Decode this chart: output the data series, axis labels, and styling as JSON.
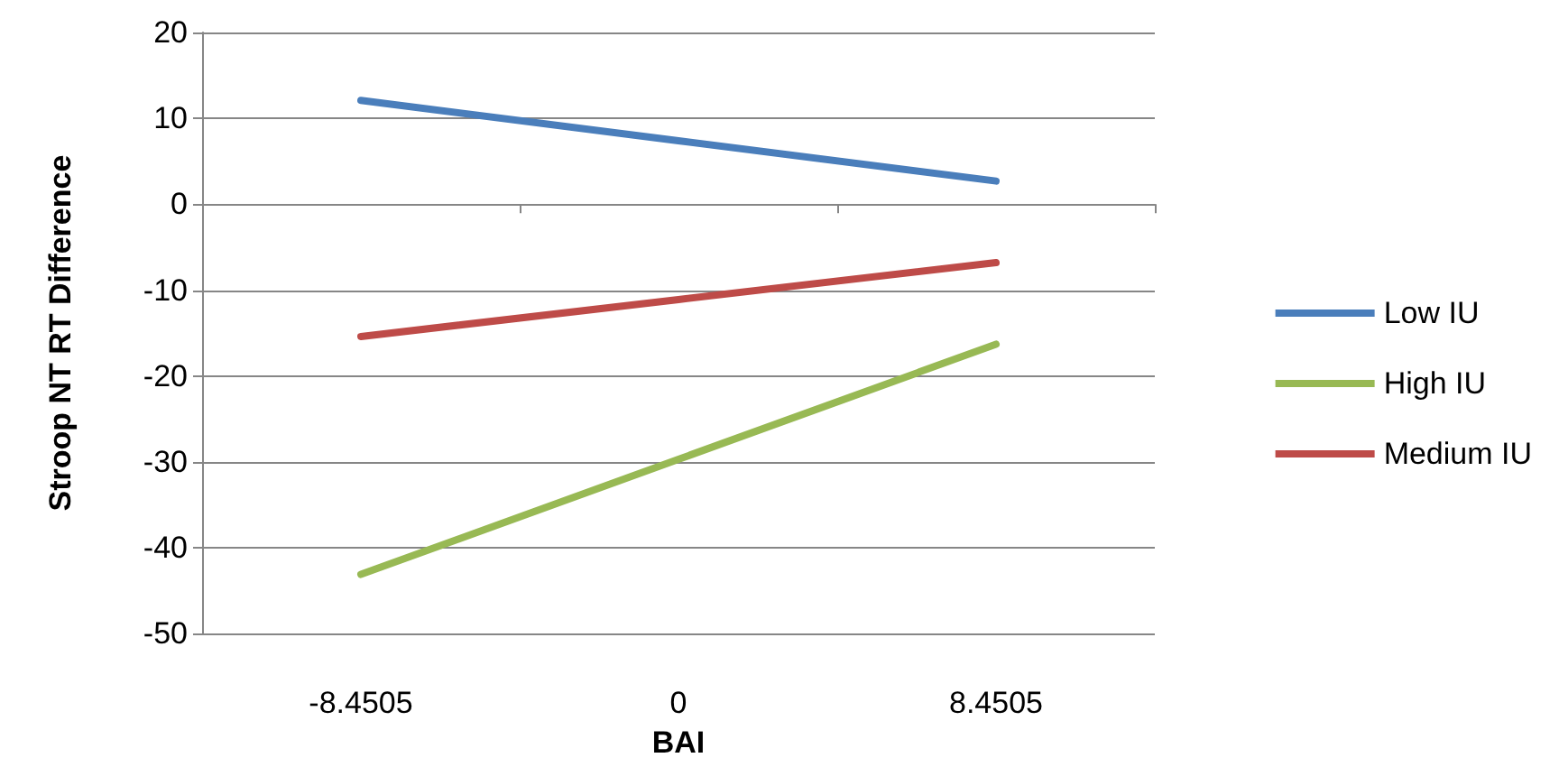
{
  "chart_data": {
    "type": "line",
    "xlabel": "BAI",
    "ylabel": "Stroop NT RT Difference",
    "categories": [
      "-8.4505",
      "0",
      "8.4505"
    ],
    "series": [
      {
        "name": "Low IU",
        "color": "#4a7ebb",
        "values": [
          12.1,
          7.4,
          2.7
        ]
      },
      {
        "name": "High IU",
        "color": "#98b954",
        "values": [
          -43.1,
          -29.7,
          -16.3
        ]
      },
      {
        "name": "Medium IU",
        "color": "#be4b48",
        "values": [
          -15.4,
          -11.1,
          -6.8
        ]
      }
    ],
    "ylim": [
      -50,
      20
    ],
    "yticks": [
      -50,
      -40,
      -30,
      -20,
      -10,
      0,
      10,
      20
    ],
    "grid": "y",
    "legend": "right",
    "marker": "none",
    "line_style": "solid"
  }
}
